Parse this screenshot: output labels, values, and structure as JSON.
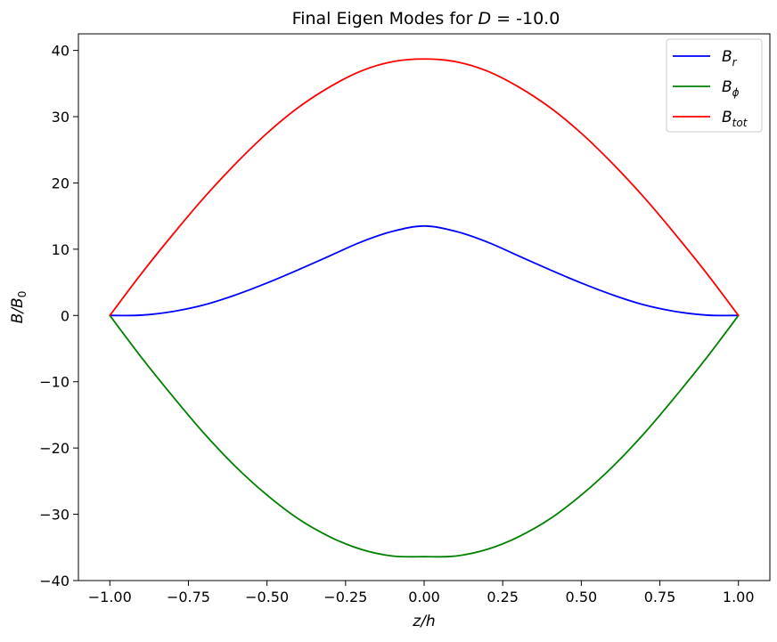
{
  "chart_data": {
    "type": "line",
    "title": "Final Eigen Modes for D = -10.0",
    "title_parts": {
      "prefix": "Final Eigen Modes for ",
      "var": "D",
      "suffix": " = -10.0"
    },
    "xlabel": "z/h",
    "ylabel": "B/B0",
    "xlabel_parts": {
      "main": "z/h"
    },
    "ylabel_parts": {
      "main": "B/B",
      "sub": "0"
    },
    "xlim": [
      -1.1,
      1.1
    ],
    "ylim": [
      -40,
      42.5
    ],
    "xticks": [
      -1.0,
      -0.75,
      -0.5,
      -0.25,
      0.0,
      0.25,
      0.5,
      0.75,
      1.0
    ],
    "xtick_labels": [
      "−1.00",
      "−0.75",
      "−0.50",
      "−0.25",
      "0.00",
      "0.25",
      "0.50",
      "0.75",
      "1.00"
    ],
    "yticks": [
      -40,
      -30,
      -20,
      -10,
      0,
      10,
      20,
      30,
      40
    ],
    "ytick_labels": [
      "−40",
      "−30",
      "−20",
      "−10",
      "0",
      "10",
      "20",
      "30",
      "40"
    ],
    "grid": false,
    "legend_position": "top-right",
    "series": [
      {
        "name": "B_r",
        "label_main": "B",
        "label_sub": "r",
        "color": "#0000ff",
        "x": [
          -1.0,
          -0.9,
          -0.8,
          -0.7,
          -0.6,
          -0.5,
          -0.4,
          -0.3,
          -0.2,
          -0.1,
          0.0,
          0.1,
          0.2,
          0.3,
          0.4,
          0.5,
          0.6,
          0.7,
          0.8,
          0.9,
          1.0
        ],
        "y": [
          0.0,
          0.05,
          0.6,
          1.6,
          3.1,
          4.9,
          6.9,
          9.0,
          11.1,
          12.7,
          13.5,
          12.7,
          11.1,
          9.0,
          6.9,
          4.9,
          3.1,
          1.6,
          0.6,
          0.05,
          0.0
        ]
      },
      {
        "name": "B_phi",
        "label_main": "B",
        "label_sub": "ϕ",
        "color": "#008000",
        "x": [
          -1.0,
          -0.9,
          -0.8,
          -0.7,
          -0.6,
          -0.5,
          -0.4,
          -0.3,
          -0.2,
          -0.1,
          0.0,
          0.1,
          0.2,
          0.3,
          0.4,
          0.5,
          0.6,
          0.7,
          0.8,
          0.9,
          1.0
        ],
        "y": [
          0.0,
          -6.3,
          -12.2,
          -17.8,
          -22.8,
          -27.1,
          -30.7,
          -33.4,
          -35.3,
          -36.3,
          -36.4,
          -36.3,
          -35.3,
          -33.4,
          -30.7,
          -27.1,
          -22.8,
          -17.8,
          -12.2,
          -6.3,
          0.0
        ]
      },
      {
        "name": "B_tot",
        "label_main": "B",
        "label_sub": "tot",
        "color": "#ff0000",
        "x": [
          -1.0,
          -0.9,
          -0.8,
          -0.7,
          -0.6,
          -0.5,
          -0.4,
          -0.3,
          -0.2,
          -0.1,
          0.0,
          0.1,
          0.2,
          0.3,
          0.4,
          0.5,
          0.6,
          0.7,
          0.8,
          0.9,
          1.0
        ],
        "y": [
          0.0,
          6.3,
          12.2,
          17.8,
          22.9,
          27.5,
          31.4,
          34.5,
          36.9,
          38.3,
          38.7,
          38.3,
          36.9,
          34.5,
          31.4,
          27.5,
          22.9,
          17.8,
          12.2,
          6.3,
          0.0
        ]
      }
    ]
  }
}
